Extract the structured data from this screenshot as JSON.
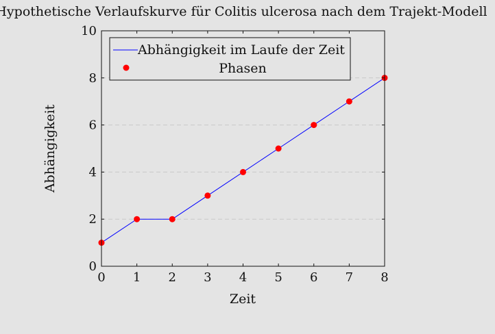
{
  "chart_data": {
    "type": "line",
    "title": "Hypothetische Verlaufskurve für Colitis ulcerosa nach dem Trajekt-Modell",
    "xlabel": "Zeit",
    "ylabel": "Abhängigkeit",
    "xlim": [
      0,
      8
    ],
    "ylim": [
      0,
      10
    ],
    "x_ticks": [
      0,
      1,
      2,
      3,
      4,
      5,
      6,
      7,
      8
    ],
    "y_ticks": [
      0,
      2,
      4,
      6,
      8,
      10
    ],
    "grid": "horizontal-dashed",
    "legend_position": "top-left",
    "series": [
      {
        "name": "Abhängigkeit im Laufe der Zeit",
        "kind": "line",
        "color": "#0000ff",
        "x": [
          0,
          1,
          2,
          3,
          4,
          5,
          6,
          7,
          8
        ],
        "y": [
          1,
          2,
          2,
          3,
          4,
          5,
          6,
          7,
          8
        ]
      },
      {
        "name": "Phasen",
        "kind": "scatter",
        "color": "#ff0000",
        "x": [
          0,
          1,
          2,
          3,
          4,
          5,
          6,
          7,
          8
        ],
        "y": [
          1,
          2,
          2,
          3,
          4,
          5,
          6,
          7,
          8
        ]
      }
    ]
  }
}
